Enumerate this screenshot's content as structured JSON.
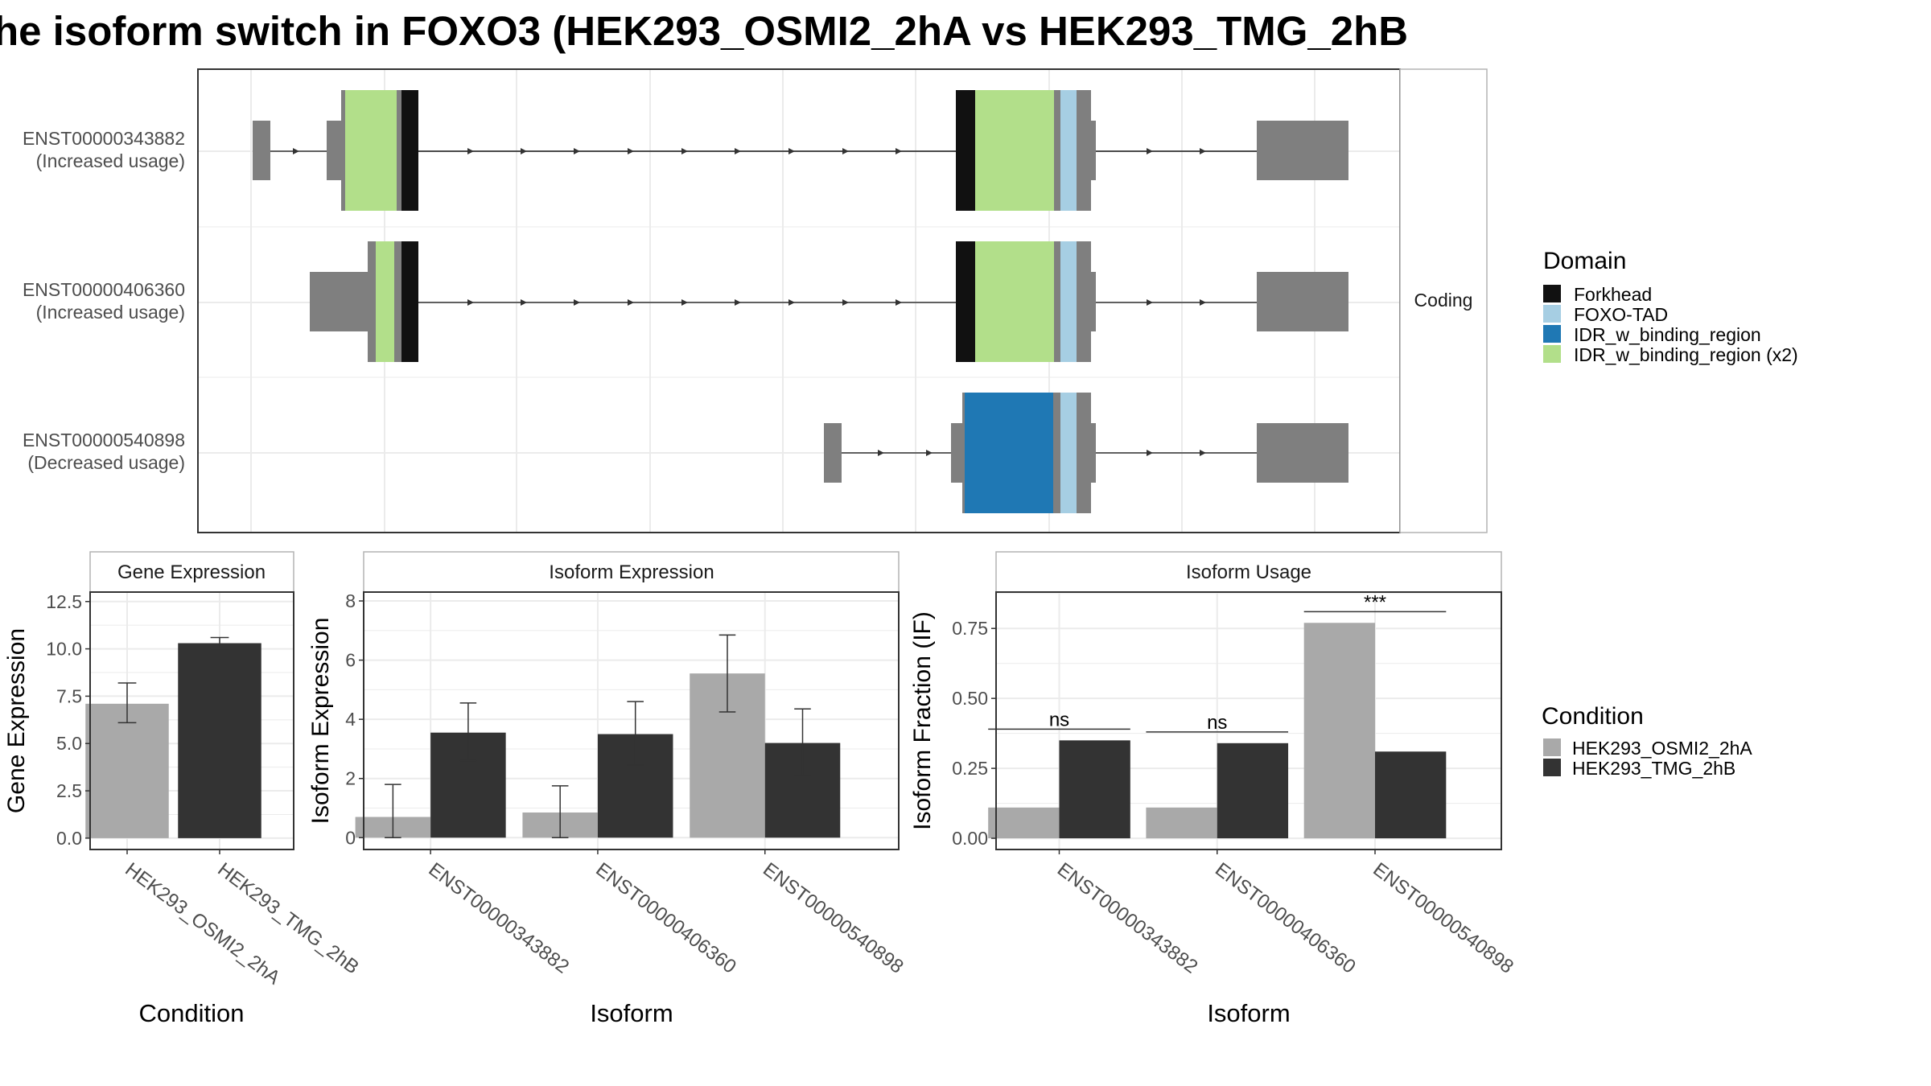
{
  "title": "he isoform switch in FOXO3 (HEK293_OSMI2_2hA vs HEK293_TMG_2hB",
  "colors": {
    "cond_a": "#a9a9a9",
    "cond_b": "#333333",
    "forkhead": "#111111",
    "foxo_tad": "#a6cee3",
    "idr": "#1f78b4",
    "idr_x2": "#b2df8a",
    "exon": "#7f7f7f",
    "strip_bg": "#ffffff",
    "grid": "#ebebeb",
    "panel_border": "#333333"
  },
  "structure": {
    "strip_label": "Coding",
    "isoforms": [
      {
        "id": "ENST00000343882",
        "status": "(Increased usage)"
      },
      {
        "id": "ENST00000406360",
        "status": "(Increased usage)"
      },
      {
        "id": "ENST00000540898",
        "status": "(Decreased usage)"
      }
    ]
  },
  "domain_legend": {
    "title": "Domain",
    "items": [
      {
        "label": "Forkhead",
        "color": "#111111"
      },
      {
        "label": "FOXO-TAD",
        "color": "#a6cee3"
      },
      {
        "label": "IDR_w_binding_region",
        "color": "#1f78b4"
      },
      {
        "label": "IDR_w_binding_region (x2)",
        "color": "#b2df8a"
      }
    ]
  },
  "condition_legend": {
    "title": "Condition",
    "items": [
      {
        "label": "HEK293_OSMI2_2hA",
        "color": "#a9a9a9"
      },
      {
        "label": "HEK293_TMG_2hB",
        "color": "#333333"
      }
    ]
  },
  "chart_data": [
    {
      "type": "bar",
      "title": "Gene Expression",
      "xlabel": "Condition",
      "ylabel": "Gene Expression",
      "ylim": [
        -0.6,
        13.0
      ],
      "yticks": [
        "0.0",
        "2.5",
        "5.0",
        "7.5",
        "10.0",
        "12.5"
      ],
      "categories": [
        "HEK293_OSMI2_2hA",
        "HEK293_TMG_2hB"
      ],
      "values": [
        7.1,
        10.3
      ],
      "errors": [
        [
          6.1,
          8.2
        ],
        [
          10.0,
          10.6
        ]
      ]
    },
    {
      "type": "bar",
      "title": "Isoform Expression",
      "xlabel": "Isoform",
      "ylabel": "Isoform Expression",
      "ylim": [
        -0.4,
        8.3
      ],
      "yticks": [
        "0",
        "2",
        "4",
        "6",
        "8"
      ],
      "categories": [
        "ENST00000343882",
        "ENST00000406360",
        "ENST00000540898"
      ],
      "series": [
        {
          "name": "HEK293_OSMI2_2hA",
          "values": [
            0.7,
            0.85,
            5.55
          ],
          "errors": [
            [
              0.0,
              1.8
            ],
            [
              0.0,
              1.75
            ],
            [
              4.25,
              6.85
            ]
          ]
        },
        {
          "name": "HEK293_TMG_2hB",
          "values": [
            3.55,
            3.5,
            3.2
          ],
          "errors": [
            [
              2.6,
              4.55
            ],
            [
              2.45,
              4.6
            ],
            [
              2.1,
              4.35
            ]
          ]
        }
      ]
    },
    {
      "type": "bar",
      "title": "Isoform Usage",
      "xlabel": "Isoform",
      "ylabel": "Isoform Fraction (IF)",
      "ylim": [
        -0.04,
        0.88
      ],
      "yticks": [
        "0.00",
        "0.25",
        "0.50",
        "0.75"
      ],
      "categories": [
        "ENST00000343882",
        "ENST00000406360",
        "ENST00000540898"
      ],
      "series": [
        {
          "name": "HEK293_OSMI2_2hA",
          "values": [
            0.11,
            0.11,
            0.77
          ]
        },
        {
          "name": "HEK293_TMG_2hB",
          "values": [
            0.35,
            0.34,
            0.31
          ]
        }
      ],
      "significance": [
        "ns",
        "ns",
        "***"
      ]
    }
  ]
}
